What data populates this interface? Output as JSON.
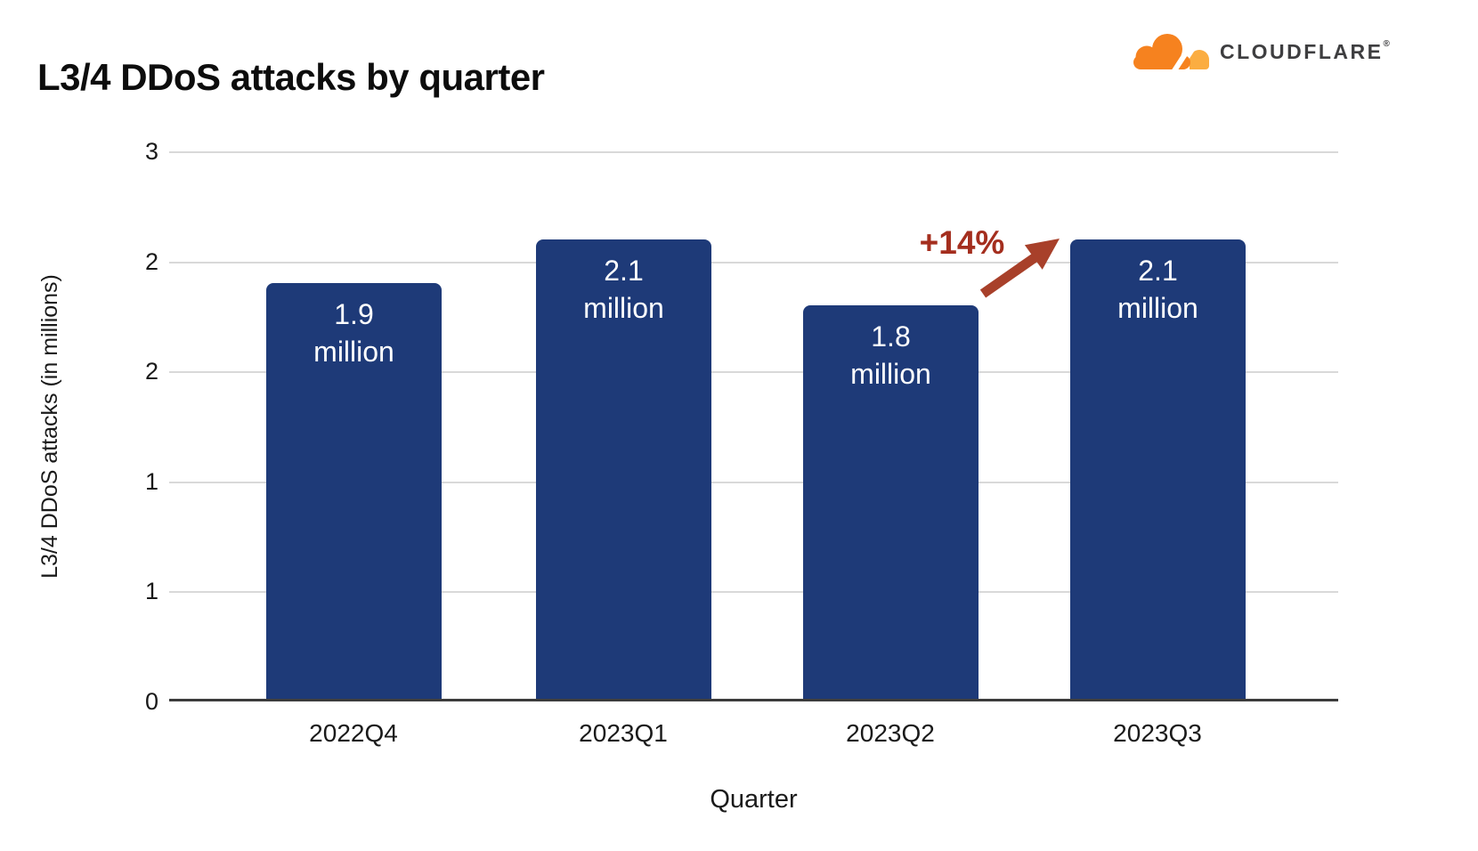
{
  "header": {
    "title": "L3/4 DDoS attacks by quarter",
    "logo": {
      "wordmark": "CLOUDFLARE",
      "registered_mark": "®",
      "icon": "cloudflare-cloud-icon",
      "cloud_color": "#f6821f",
      "cloud_light_color": "#fbad41",
      "wordmark_color": "#3e3e40"
    }
  },
  "chart_data": {
    "type": "bar",
    "title": "L3/4 DDoS attacks by quarter",
    "xlabel": "Quarter",
    "ylabel": "L3/4 DDoS attacks (in millions)",
    "categories": [
      "2022Q4",
      "2023Q1",
      "2023Q2",
      "2023Q3"
    ],
    "values": [
      1.9,
      2.1,
      1.8,
      2.1
    ],
    "bar_labels": [
      [
        "1.9",
        "million"
      ],
      [
        "2.1",
        "million"
      ],
      [
        "1.8",
        "million"
      ],
      [
        "2.1",
        "million"
      ]
    ],
    "ylim": [
      0,
      2.5
    ],
    "ytick_step": 0.5,
    "ytick_labels_top_to_bottom": [
      "3",
      "2",
      "2",
      "1",
      "1",
      "0"
    ],
    "grid": true,
    "legend": "none",
    "bar_color": "#1e3a78",
    "bar_label_color": "#ffffff",
    "annotation": {
      "text": "+14%",
      "icon": "up-right-arrow-icon",
      "from_category": "2023Q2",
      "to_category": "2023Q3",
      "color": "#a42e1e",
      "arrow_color": "#a8402a"
    }
  },
  "colors": {
    "background": "#ffffff",
    "gridline": "#d9d9d9",
    "axis_line": "#3c3c3c",
    "text": "#1a1a1a"
  }
}
